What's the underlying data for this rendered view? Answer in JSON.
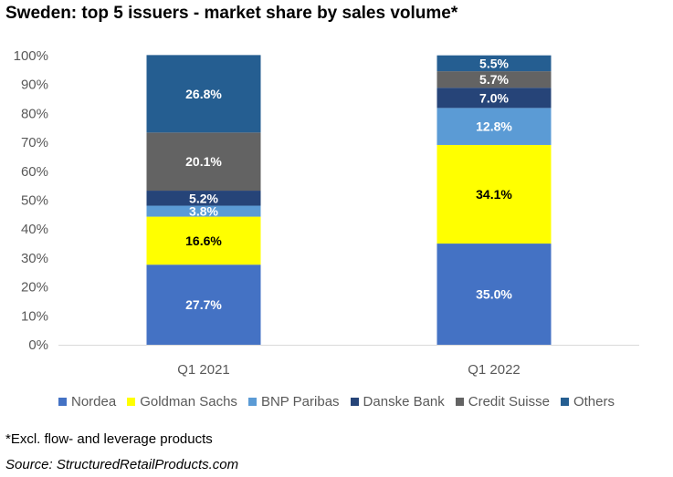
{
  "chart_data": {
    "type": "bar",
    "stacked": true,
    "title": "Sweden: top 5 issuers - market share by sales volume*",
    "categories": [
      "Q1 2021",
      "Q1 2022"
    ],
    "series": [
      {
        "name": "Nordea",
        "color": "#4472C4",
        "values": [
          27.7,
          35.0
        ],
        "labels": [
          "27.7%",
          "35.0%"
        ],
        "label_color": "#ffffff"
      },
      {
        "name": "Goldman Sachs",
        "color": "#FFFF00",
        "values": [
          16.6,
          34.1
        ],
        "labels": [
          "16.6%",
          "34.1%"
        ],
        "label_color": "#000000"
      },
      {
        "name": "BNP Paribas",
        "color": "#5B9BD5",
        "values": [
          3.8,
          12.8
        ],
        "labels": [
          "3.8%",
          "12.8%"
        ],
        "label_color": "#ffffff"
      },
      {
        "name": "Danske Bank",
        "color": "#264478",
        "values": [
          5.2,
          7.0
        ],
        "labels": [
          "5.2%",
          "7.0%"
        ],
        "label_color": "#ffffff"
      },
      {
        "name": "Credit Suisse",
        "color": "#636363",
        "values": [
          20.1,
          5.7
        ],
        "labels": [
          "20.1%",
          "5.7%"
        ],
        "label_color": "#ffffff"
      },
      {
        "name": "Others",
        "color": "#255E91",
        "values": [
          26.8,
          5.5
        ],
        "labels": [
          "26.8%",
          "5.5%"
        ],
        "label_color": "#ffffff"
      }
    ],
    "ylim": [
      0,
      100
    ],
    "y_ticks": [
      "0%",
      "10%",
      "20%",
      "30%",
      "40%",
      "50%",
      "60%",
      "70%",
      "80%",
      "90%",
      "100%"
    ],
    "grid": false,
    "legend_position": "bottom"
  },
  "footnote": "*Excl. flow- and leverage products",
  "source": "Source: StructuredRetailProducts.com"
}
